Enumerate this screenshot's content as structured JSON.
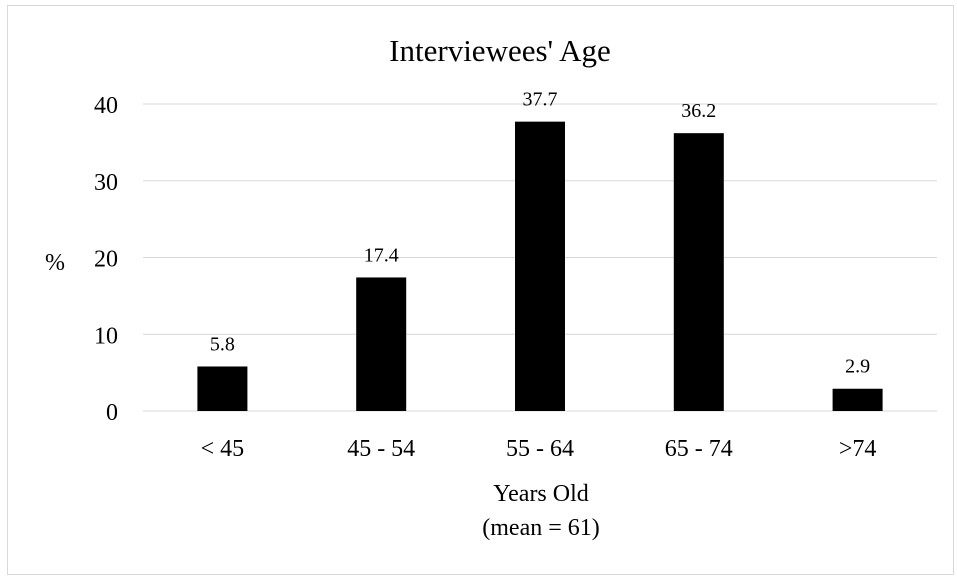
{
  "chart_data": {
    "type": "bar",
    "title": "Interviewees' Age",
    "ylabel": "%",
    "xlabel": "Years Old",
    "xlabel_note": "(mean = 61)",
    "categories": [
      "< 45",
      "45 - 54",
      "55 - 64",
      "65 - 74",
      ">74"
    ],
    "values": [
      5.8,
      17.4,
      37.7,
      36.2,
      2.9
    ],
    "data_labels": [
      "5.8",
      "17.4",
      "37.7",
      "36.2",
      "2.9"
    ],
    "ylim": [
      0,
      40
    ],
    "yticks": [
      "0",
      "10",
      "20",
      "30",
      "40"
    ],
    "grid": true,
    "legend": "none",
    "bar_color": "#000000",
    "grid_color": "#d9d9d9"
  }
}
